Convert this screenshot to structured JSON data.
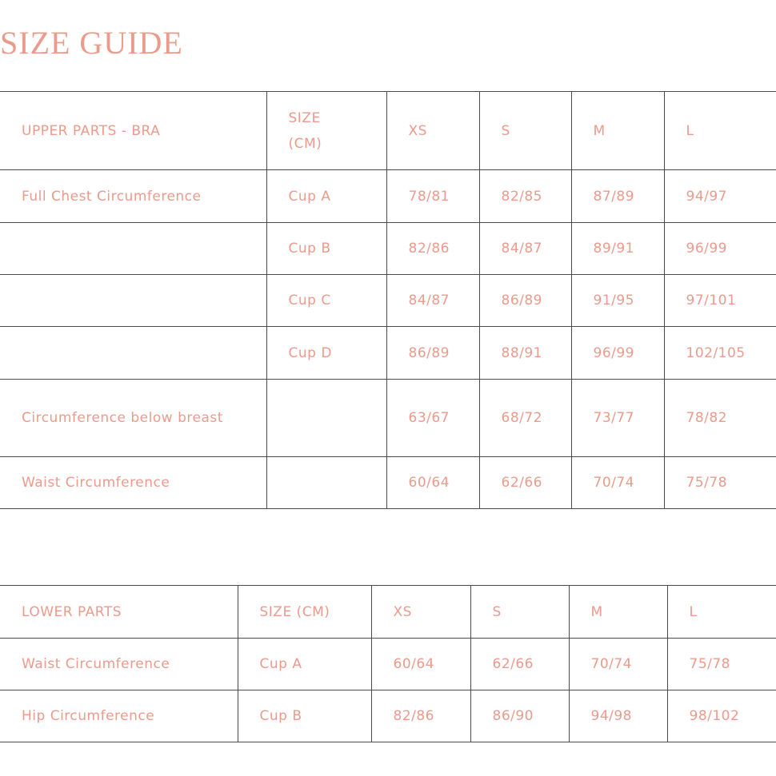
{
  "title": "SIZE GUIDE",
  "upper": {
    "header": [
      "UPPER PARTS - BRA",
      "SIZE (CM)",
      "XS",
      "S",
      "M",
      "L"
    ],
    "rows": [
      [
        "Full Chest Circumference",
        "Cup A",
        "78/81",
        "82/85",
        "87/89",
        "94/97"
      ],
      [
        "",
        "Cup B",
        "82/86",
        "84/87",
        "89/91",
        "96/99"
      ],
      [
        "",
        "Cup C",
        "84/87",
        "86/89",
        "91/95",
        "97/101"
      ],
      [
        "",
        "Cup D",
        "86/89",
        "88/91",
        "96/99",
        "102/105"
      ],
      [
        "Circumference below breast",
        "",
        "63/67",
        "68/72",
        "73/77",
        "78/82"
      ],
      [
        "Waist Circumference",
        "",
        "60/64",
        "62/66",
        "70/74",
        "75/78"
      ]
    ]
  },
  "lower": {
    "header": [
      "LOWER PARTS",
      "SIZE (CM)",
      "XS",
      "S",
      "M",
      "L"
    ],
    "rows": [
      [
        "Waist Circumference",
        "Cup A",
        "60/64",
        "62/66",
        "70/74",
        "75/78"
      ],
      [
        "Hip Circumference",
        "Cup B",
        "82/86",
        "86/90",
        "94/98",
        "98/102"
      ]
    ]
  },
  "colors": {
    "text": "#ec9a8c",
    "border": "#4a4a4a"
  }
}
